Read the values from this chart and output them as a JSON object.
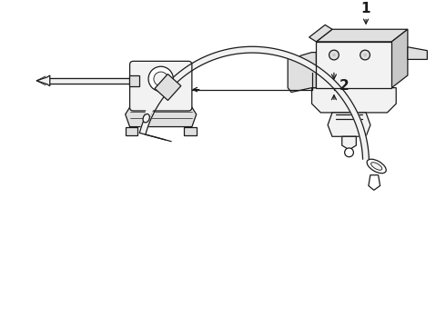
{
  "bg_color": "#ffffff",
  "lc": "#1a1a1a",
  "lc_mid": "#555555",
  "fill_white": "#ffffff",
  "fill_light": "#f2f2f2",
  "fill_mid": "#e0e0e0",
  "fill_dark": "#c8c8c8",
  "label_1": "1",
  "label_2": "2",
  "figsize": [
    4.9,
    3.6
  ],
  "dpi": 100
}
